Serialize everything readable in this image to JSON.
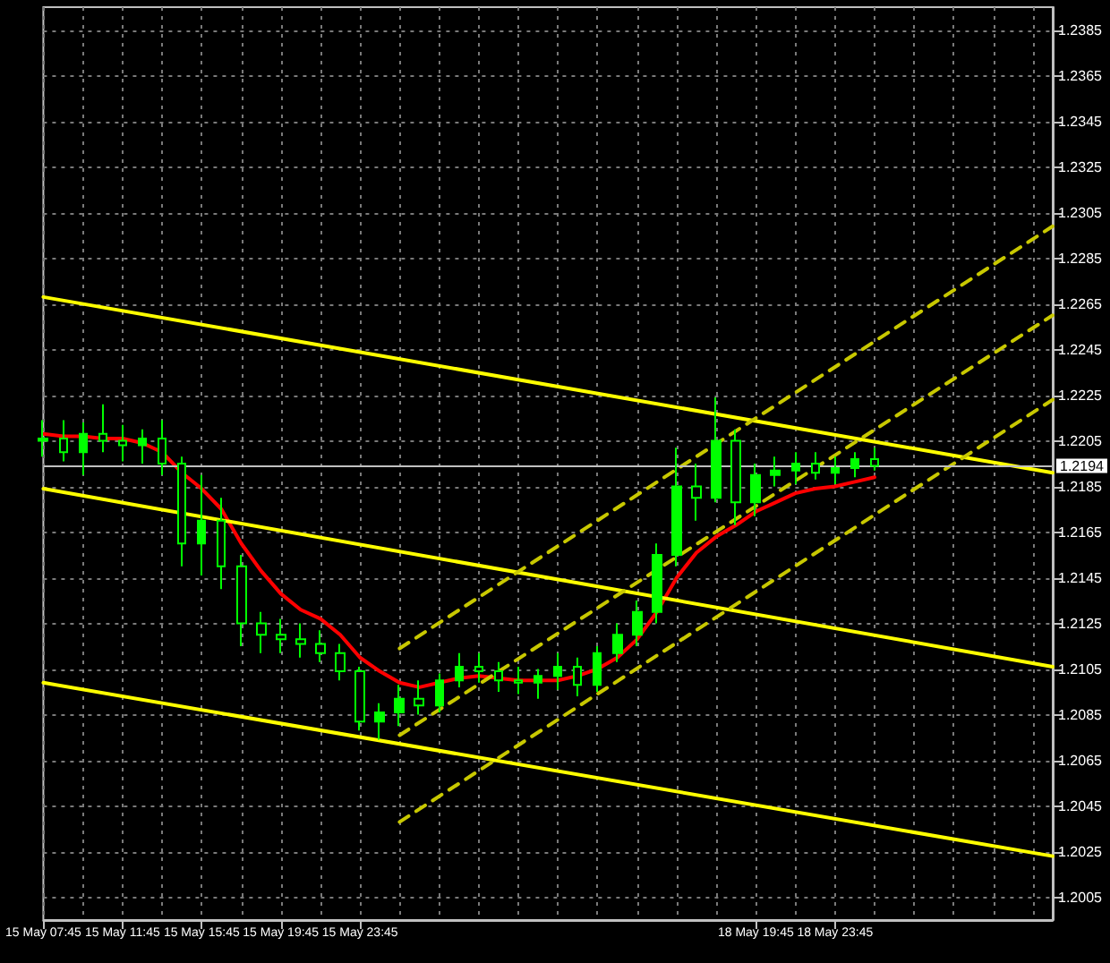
{
  "chart_data": {
    "type": "candlestick",
    "categories": [
      "15 May 07:45",
      null,
      null,
      null,
      "15 May 11:45",
      null,
      null,
      null,
      "15 May 15:45",
      null,
      null,
      null,
      "15 May 19:45",
      null,
      null,
      null,
      "15 May 23:45",
      null,
      null,
      null,
      null,
      null,
      null,
      null,
      null,
      null,
      null,
      null,
      null,
      null,
      null,
      null,
      null,
      null,
      null,
      null,
      "18 May 19:45",
      null,
      null,
      null,
      "18 May 23:45",
      null,
      null,
      null,
      null,
      null,
      null,
      null,
      null,
      null,
      null,
      null
    ],
    "ylim": [
      1.1995,
      1.2395
    ],
    "yticks": [
      1.2005,
      1.2025,
      1.2045,
      1.2065,
      1.2085,
      1.2105,
      1.2125,
      1.2145,
      1.2165,
      1.2185,
      1.2205,
      1.2225,
      1.2245,
      1.2265,
      1.2285,
      1.2305,
      1.2325,
      1.2345,
      1.2365,
      1.2385
    ],
    "grid": true,
    "marker": "none",
    "ref_lines": [
      {
        "axis": "y",
        "value": 1.2194,
        "label": "1.2194",
        "color": "#c0c0c0"
      }
    ],
    "series": [
      {
        "color": "#00ff00",
        "ohlc": [
          [
            1.2205,
            1.2214,
            1.2198,
            1.2206
          ],
          [
            1.2206,
            1.2214,
            1.2196,
            1.22
          ],
          [
            1.22,
            1.2213,
            1.219,
            1.2208
          ],
          [
            1.2208,
            1.2221,
            1.22,
            1.2205
          ],
          [
            1.2205,
            1.2212,
            1.2196,
            1.2203
          ],
          [
            1.2203,
            1.221,
            1.2195,
            1.2206
          ],
          [
            1.2206,
            1.2214,
            1.219,
            1.2195
          ],
          [
            1.2195,
            1.2198,
            1.215,
            1.216
          ],
          [
            1.216,
            1.219,
            1.2146,
            1.217
          ],
          [
            1.217,
            1.218,
            1.214,
            1.215
          ],
          [
            1.215,
            1.2155,
            1.2115,
            1.2125
          ],
          [
            1.2125,
            1.213,
            1.2112,
            1.212
          ],
          [
            1.212,
            1.2127,
            1.2112,
            1.2118
          ],
          [
            1.2118,
            1.2125,
            1.211,
            1.2116
          ],
          [
            1.2116,
            1.2122,
            1.2108,
            1.2112
          ],
          [
            1.2112,
            1.2116,
            1.21,
            1.2104
          ],
          [
            1.2104,
            1.2106,
            1.2078,
            1.2082
          ],
          [
            1.2082,
            1.209,
            1.2074,
            1.2086
          ],
          [
            1.2086,
            1.2098,
            1.208,
            1.2092
          ],
          [
            1.2092,
            1.21,
            1.2085,
            1.2089
          ],
          [
            1.2089,
            1.2103,
            1.2086,
            1.21
          ],
          [
            1.21,
            1.2112,
            1.2097,
            1.2106
          ],
          [
            1.2106,
            1.2112,
            1.2099,
            1.2104
          ],
          [
            1.2104,
            1.2108,
            1.2095,
            1.21
          ],
          [
            1.21,
            1.2106,
            1.2094,
            1.2099
          ],
          [
            1.2099,
            1.2105,
            1.2092,
            1.2102
          ],
          [
            1.2102,
            1.2112,
            1.2096,
            1.2106
          ],
          [
            1.2106,
            1.211,
            1.2093,
            1.2098
          ],
          [
            1.2098,
            1.2115,
            1.2095,
            1.2112
          ],
          [
            1.2112,
            1.2125,
            1.2108,
            1.212
          ],
          [
            1.212,
            1.2135,
            1.2115,
            1.213
          ],
          [
            1.213,
            1.216,
            1.2125,
            1.2155
          ],
          [
            1.2155,
            1.2202,
            1.215,
            1.2185
          ],
          [
            1.2185,
            1.2195,
            1.217,
            1.218
          ],
          [
            1.218,
            1.2224,
            1.2178,
            1.2205
          ],
          [
            1.2205,
            1.221,
            1.2168,
            1.2178
          ],
          [
            1.2178,
            1.2195,
            1.2172,
            1.219
          ],
          [
            1.219,
            1.2198,
            1.2185,
            1.2192
          ],
          [
            1.2192,
            1.22,
            1.2186,
            1.2195
          ],
          [
            1.2195,
            1.22,
            1.2188,
            1.2191
          ],
          [
            1.2191,
            1.2198,
            1.2186,
            1.2193
          ],
          [
            1.2193,
            1.22,
            1.2189,
            1.2197
          ],
          [
            1.2197,
            1.2202,
            1.2192,
            1.2194
          ],
          null,
          null,
          null,
          null,
          null,
          null,
          null,
          null,
          null
        ]
      },
      {
        "type": "line",
        "color": "#ff0000",
        "line_style": "solid",
        "values": [
          1.2208,
          1.2207,
          1.2207,
          1.2206,
          1.2206,
          1.2204,
          1.22,
          1.2191,
          1.2184,
          1.2175,
          1.216,
          1.2148,
          1.2138,
          1.2131,
          1.2127,
          1.212,
          1.211,
          1.2104,
          1.2099,
          1.2097,
          1.2099,
          1.2101,
          1.2102,
          1.2101,
          1.21,
          1.21,
          1.21,
          1.2102,
          1.2105,
          1.211,
          1.2118,
          1.213,
          1.2145,
          1.2156,
          1.2163,
          1.2168,
          1.2174,
          1.2178,
          1.2182,
          1.2184,
          1.2185,
          1.2187,
          1.2189,
          null,
          null,
          null,
          null,
          null,
          null,
          null,
          null,
          null
        ]
      },
      {
        "type": "line",
        "color": "#ffff00",
        "line_style": "solid",
        "values": [
          1.2268,
          null,
          null,
          null,
          null,
          null,
          null,
          null,
          null,
          null,
          null,
          null,
          null,
          null,
          null,
          null,
          null,
          null,
          null,
          null,
          null,
          null,
          null,
          null,
          null,
          null,
          null,
          null,
          null,
          null,
          null,
          null,
          null,
          null,
          null,
          null,
          null,
          null,
          null,
          null,
          null,
          null,
          null,
          null,
          null,
          null,
          null,
          null,
          null,
          null,
          null,
          1.2191
        ]
      },
      {
        "type": "line",
        "color": "#ffff00",
        "line_style": "solid",
        "values": [
          1.2184,
          null,
          null,
          null,
          null,
          null,
          null,
          null,
          null,
          null,
          null,
          null,
          null,
          null,
          null,
          null,
          null,
          null,
          null,
          null,
          null,
          null,
          null,
          null,
          null,
          null,
          null,
          null,
          null,
          null,
          null,
          null,
          null,
          null,
          null,
          null,
          null,
          null,
          null,
          null,
          null,
          null,
          null,
          null,
          null,
          null,
          null,
          null,
          null,
          null,
          null,
          1.2106
        ]
      },
      {
        "type": "line",
        "color": "#ffff00",
        "line_style": "solid",
        "values": [
          1.2099,
          null,
          null,
          null,
          null,
          null,
          null,
          null,
          null,
          null,
          null,
          null,
          null,
          null,
          null,
          null,
          null,
          null,
          null,
          null,
          null,
          null,
          null,
          null,
          null,
          null,
          null,
          null,
          null,
          null,
          null,
          null,
          null,
          null,
          null,
          null,
          null,
          null,
          null,
          null,
          null,
          null,
          null,
          null,
          null,
          null,
          null,
          null,
          null,
          null,
          null,
          1.2023
        ]
      },
      {
        "type": "line",
        "color": "#c8c800",
        "line_style": "dashed",
        "values": [
          null,
          null,
          null,
          null,
          null,
          null,
          null,
          null,
          null,
          null,
          null,
          null,
          null,
          null,
          null,
          null,
          null,
          null,
          1.2114,
          null,
          null,
          null,
          null,
          null,
          null,
          null,
          null,
          null,
          null,
          null,
          null,
          null,
          null,
          null,
          null,
          null,
          null,
          null,
          null,
          null,
          null,
          null,
          null,
          null,
          null,
          null,
          null,
          null,
          null,
          null,
          null,
          1.2299
        ]
      },
      {
        "type": "line",
        "color": "#c8c800",
        "line_style": "dashed",
        "values": [
          null,
          null,
          null,
          null,
          null,
          null,
          null,
          null,
          null,
          null,
          null,
          null,
          null,
          null,
          null,
          null,
          null,
          null,
          1.2076,
          null,
          null,
          null,
          null,
          null,
          null,
          null,
          null,
          null,
          null,
          null,
          null,
          null,
          null,
          null,
          null,
          null,
          null,
          null,
          null,
          null,
          null,
          null,
          null,
          null,
          null,
          null,
          null,
          null,
          null,
          null,
          null,
          1.226
        ]
      },
      {
        "type": "line",
        "color": "#c8c800",
        "line_style": "dashed",
        "values": [
          null,
          null,
          null,
          null,
          null,
          null,
          null,
          null,
          null,
          null,
          null,
          null,
          null,
          null,
          null,
          null,
          null,
          null,
          1.2038,
          null,
          null,
          null,
          null,
          null,
          null,
          null,
          null,
          null,
          null,
          null,
          null,
          null,
          null,
          null,
          null,
          null,
          null,
          null,
          null,
          null,
          null,
          null,
          null,
          null,
          null,
          null,
          null,
          null,
          null,
          null,
          null,
          1.2223
        ]
      }
    ]
  }
}
